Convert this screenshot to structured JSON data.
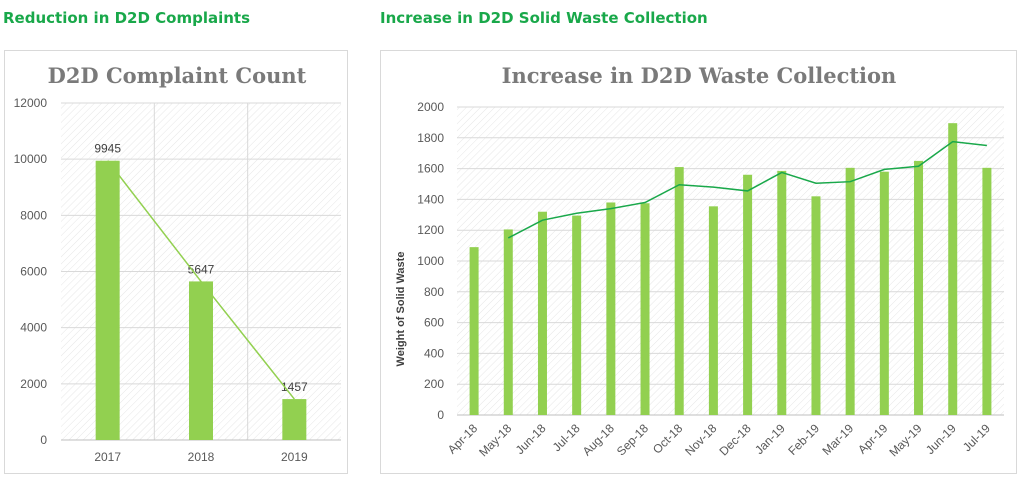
{
  "headings": {
    "left": "Reduction in D2D Complaints",
    "right": "Increase in D2D Solid Waste Collection"
  },
  "colors": {
    "heading": "#19a84a",
    "bar_left": "#92d050",
    "line_left": "#92d050",
    "bar_right": "#92d050",
    "line_right": "#19a84a"
  },
  "chart_data": [
    {
      "type": "bar",
      "title": "D2D Complaint Count",
      "categories": [
        "2017",
        "2018",
        "2019"
      ],
      "values": [
        9945,
        5647,
        1457
      ],
      "data_labels": [
        "9945",
        "5647",
        "1457"
      ],
      "trend": [
        9945,
        5647,
        1457
      ],
      "xlabel": "",
      "ylabel": "",
      "ylim": [
        0,
        12000
      ],
      "yticks": [
        "0",
        "2000",
        "4000",
        "6000",
        "8000",
        "10000",
        "12000"
      ],
      "grid": true,
      "legend": "none"
    },
    {
      "type": "bar",
      "title": "Increase in D2D Waste Collection",
      "categories": [
        "Apr-18",
        "May-18",
        "Jun-18",
        "Jul-18",
        "Aug-18",
        "Sep-18",
        "Oct-18",
        "Nov-18",
        "Dec-18",
        "Jan-19",
        "Feb-19",
        "Mar-19",
        "Apr-19",
        "May-19",
        "Jun-19",
        "Jul-19"
      ],
      "values": [
        1090,
        1205,
        1320,
        1295,
        1380,
        1375,
        1610,
        1355,
        1560,
        1585,
        1420,
        1605,
        1580,
        1650,
        1895,
        1605
      ],
      "trend": [
        null,
        1150,
        1265,
        1310,
        1340,
        1380,
        1495,
        1480,
        1455,
        1575,
        1505,
        1515,
        1595,
        1615,
        1775,
        1750
      ],
      "xlabel": "",
      "ylabel": "Weight of Solid Waste",
      "ylim": [
        0,
        2000
      ],
      "yticks": [
        "0",
        "200",
        "400",
        "600",
        "800",
        "1000",
        "1200",
        "1400",
        "1600",
        "1800",
        "2000"
      ],
      "grid": true,
      "legend": "none"
    }
  ]
}
